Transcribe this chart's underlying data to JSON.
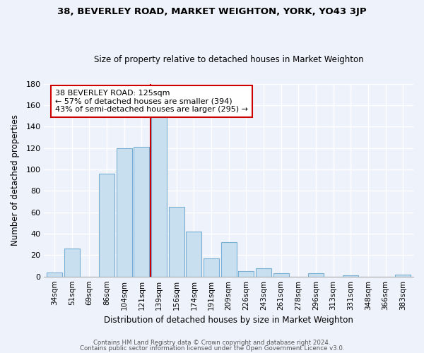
{
  "title": "38, BEVERLEY ROAD, MARKET WEIGHTON, YORK, YO43 3JP",
  "subtitle": "Size of property relative to detached houses in Market Weighton",
  "xlabel": "Distribution of detached houses by size in Market Weighton",
  "ylabel": "Number of detached properties",
  "bar_labels": [
    "34sqm",
    "51sqm",
    "69sqm",
    "86sqm",
    "104sqm",
    "121sqm",
    "139sqm",
    "156sqm",
    "174sqm",
    "191sqm",
    "209sqm",
    "226sqm",
    "243sqm",
    "261sqm",
    "278sqm",
    "296sqm",
    "313sqm",
    "331sqm",
    "348sqm",
    "366sqm",
    "383sqm"
  ],
  "bar_heights": [
    4,
    26,
    0,
    96,
    120,
    121,
    150,
    65,
    42,
    17,
    32,
    5,
    8,
    3,
    0,
    3,
    0,
    1,
    0,
    0,
    2
  ],
  "bar_color": "#c8dff0",
  "bar_edge_color": "#7aafd4",
  "vline_color": "#cc0000",
  "annotation_title": "38 BEVERLEY ROAD: 125sqm",
  "annotation_line1": "← 57% of detached houses are smaller (394)",
  "annotation_line2": "43% of semi-detached houses are larger (295) →",
  "ylim": [
    0,
    180
  ],
  "yticks": [
    0,
    20,
    40,
    60,
    80,
    100,
    120,
    140,
    160,
    180
  ],
  "footer1": "Contains HM Land Registry data © Crown copyright and database right 2024.",
  "footer2": "Contains public sector information licensed under the Open Government Licence v3.0.",
  "bg_color": "#eef2fb",
  "plot_bg_color": "#eef2fb",
  "grid_color": "#ffffff",
  "spine_color": "#aaaaaa"
}
